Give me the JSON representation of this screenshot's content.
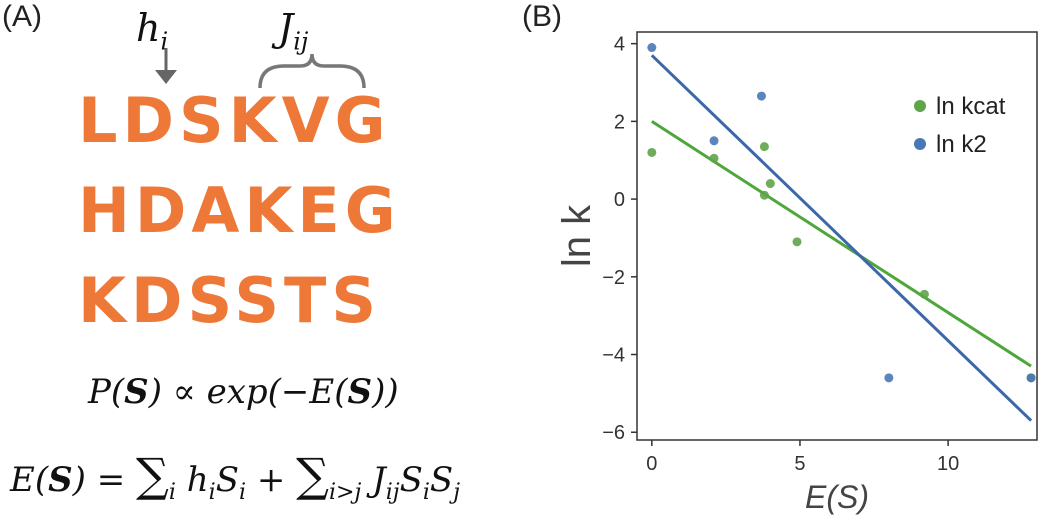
{
  "panel_a": {
    "label": "(A)",
    "h_symbol": "hi",
    "j_symbol": "Jij",
    "sequences": [
      "LDSKVG",
      "HDAKEG",
      "KDSSTS"
    ],
    "equation_p": "P(S) ∝ exp(−E(S))",
    "equation_e": "E(S) = ∑i hiSi + ∑i>j JijSiSj",
    "colors": {
      "sequence": "#ee7838",
      "annotation": "#666666"
    }
  },
  "chart_data": {
    "panel_label": "(B)",
    "type": "scatter",
    "xlabel": "E(S)",
    "ylabel": "ln k",
    "xlim": [
      -0.5,
      13
    ],
    "ylim": [
      -6.2,
      4.3
    ],
    "xticks": [
      0,
      5,
      10
    ],
    "yticks": [
      4,
      2,
      0,
      -2,
      -4,
      -6
    ],
    "grid": false,
    "legend_position": "top-right",
    "series": [
      {
        "name": "ln kcat",
        "color": "#5fa44a",
        "line_color": "#4ea73a",
        "points": [
          [
            0,
            1.2
          ],
          [
            2.1,
            1.05
          ],
          [
            3.8,
            1.35
          ],
          [
            3.8,
            0.1
          ],
          [
            4.0,
            0.4
          ],
          [
            4.9,
            -1.1
          ],
          [
            9.2,
            -2.45
          ],
          [
            12.8,
            -4.6
          ]
        ],
        "fit": [
          [
            0,
            2.0
          ],
          [
            12.8,
            -4.3
          ]
        ]
      },
      {
        "name": "ln k2",
        "color": "#4a78b6",
        "line_color": "#3c68aa",
        "points": [
          [
            0,
            3.9
          ],
          [
            2.1,
            1.5
          ],
          [
            3.7,
            2.65
          ],
          [
            8.0,
            -4.6
          ],
          [
            12.8,
            -4.6
          ]
        ],
        "fit": [
          [
            0,
            3.7
          ],
          [
            12.8,
            -5.7
          ]
        ]
      }
    ]
  }
}
